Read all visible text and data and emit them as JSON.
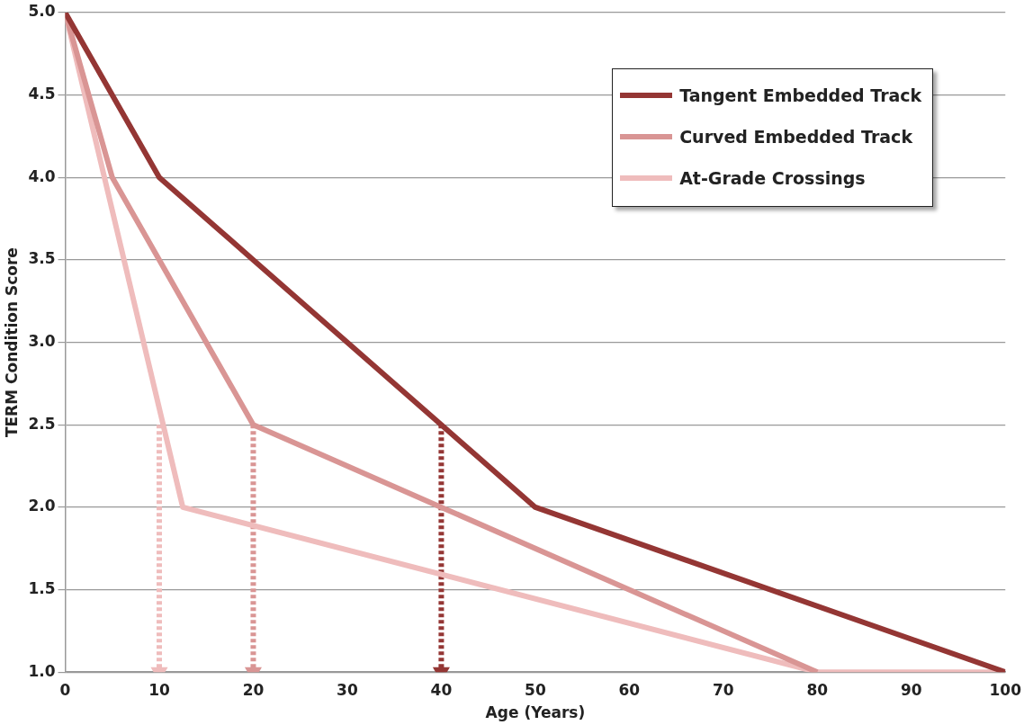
{
  "chart_data": {
    "type": "line",
    "xlabel": "Age (Years)",
    "ylabel": "TERM Condition Score",
    "xlim": [
      0,
      100
    ],
    "xticks": [
      0,
      10,
      20,
      30,
      40,
      50,
      60,
      70,
      80,
      90,
      100
    ],
    "ylim": [
      1,
      5
    ],
    "yticks": [
      {
        "value": 1,
        "label": "1.0"
      },
      {
        "value": 1.5,
        "label": "1.5"
      },
      {
        "value": 2,
        "label": "2.0"
      },
      {
        "value": 2.5,
        "label": "2.5"
      },
      {
        "value": 3,
        "label": "3.0"
      },
      {
        "value": 3.5,
        "label": "3.5"
      },
      {
        "value": 4,
        "label": "4.0"
      },
      {
        "value": 4.5,
        "label": "4.5"
      },
      {
        "value": 5,
        "label": "5.0"
      }
    ],
    "grid": "y",
    "legend": "top right",
    "marker": "none",
    "line_style": "solid",
    "series": [
      {
        "name": "Tangent Embedded Track",
        "color": "#943634",
        "x": [
          0,
          10,
          20,
          40,
          50,
          100
        ],
        "values": [
          5,
          4,
          3.5,
          2.5,
          2,
          1
        ]
      },
      {
        "name": "Curved Embedded Track",
        "color": "#d99594",
        "x": [
          0,
          5,
          20,
          40,
          80
        ],
        "values": [
          5,
          4,
          2.5,
          2,
          1
        ]
      },
      {
        "name": "At-Grade Crossings",
        "color": "#efbcbc",
        "x": [
          0,
          12.5,
          80,
          100
        ],
        "values": [
          5,
          2,
          1,
          1
        ]
      },
      {
        "color": "#efbcbc",
        "x": [
          10,
          10
        ],
        "values": [
          2.5,
          1
        ],
        "line_style": "dotted",
        "marker": "triangle"
      },
      {
        "color": "#d99594",
        "x": [
          20,
          20
        ],
        "values": [
          2.5,
          1
        ],
        "line_style": "dotted",
        "marker": "triangle"
      },
      {
        "color": "#943634",
        "x": [
          40,
          40
        ],
        "values": [
          2.5,
          1
        ],
        "line_style": "dotted",
        "marker": "triangle"
      }
    ]
  }
}
